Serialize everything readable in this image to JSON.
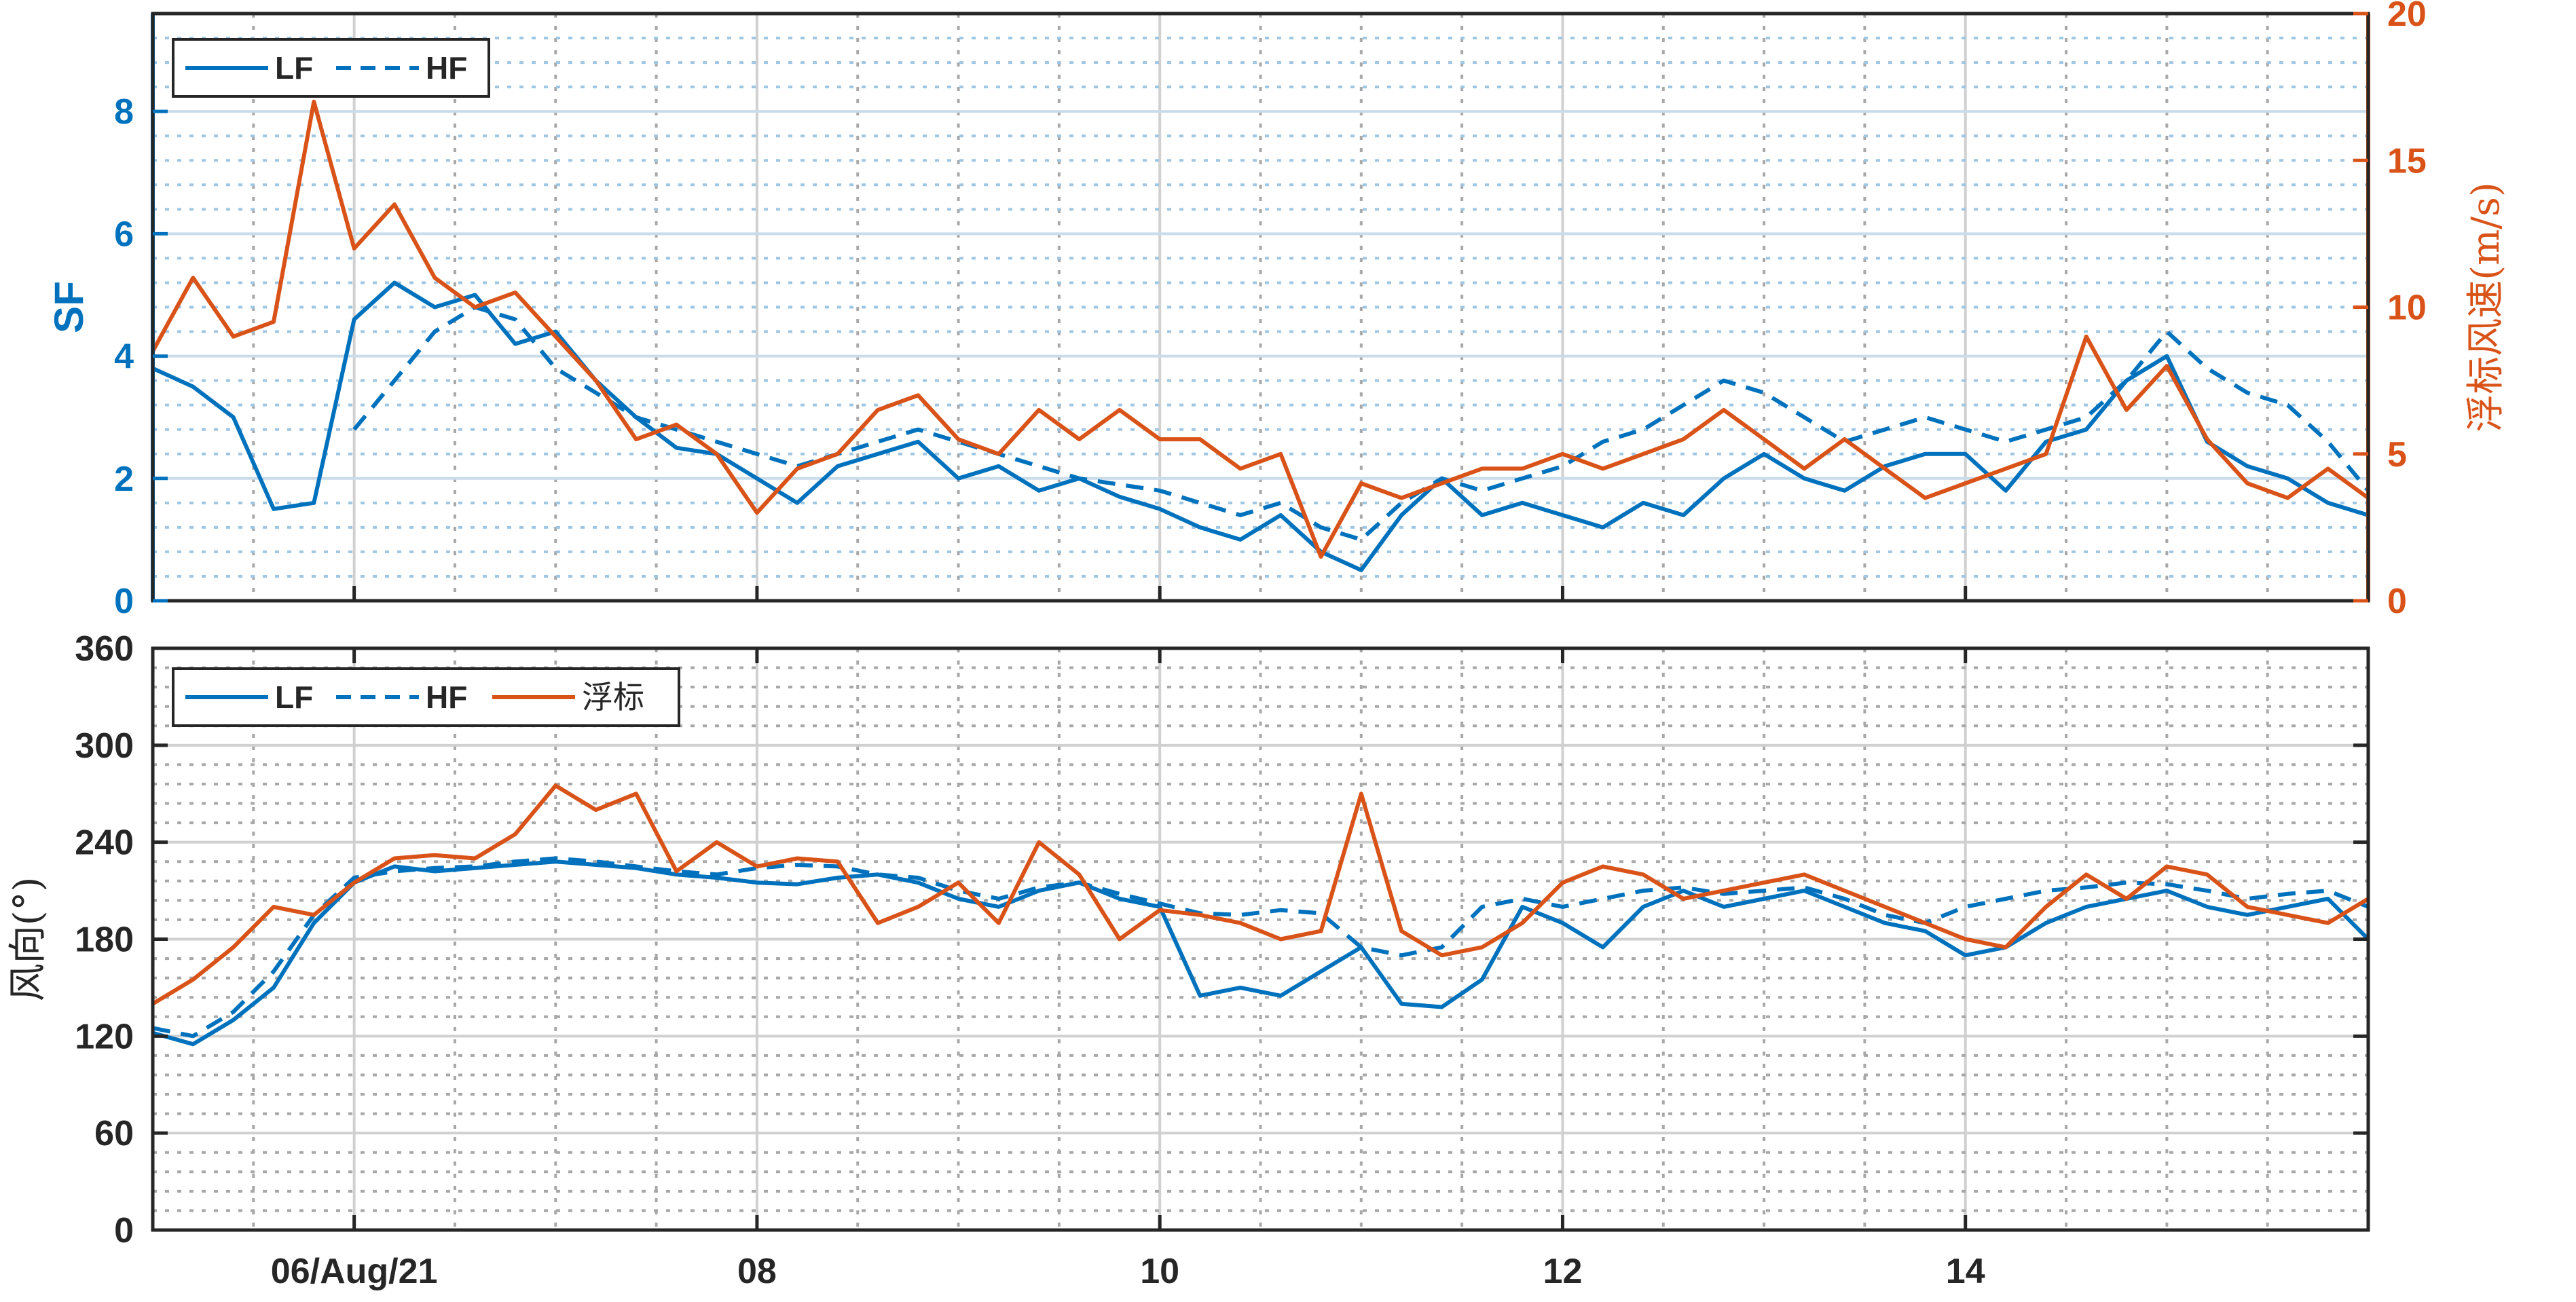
{
  "chart_data": [
    {
      "type": "line",
      "panel": "top",
      "xlabel": "",
      "ylabel": "SF",
      "ylabel_right": "浮标风速(m/s)",
      "ylim": [
        0,
        9.6
      ],
      "ylim_right": [
        0,
        20
      ],
      "yticks": [
        "0",
        "2",
        "4",
        "6",
        "8"
      ],
      "yticks_right": [
        "0",
        "5",
        "10",
        "15",
        "20"
      ],
      "grid": true,
      "legend_placement": "top-left",
      "legend": [
        "LF",
        "HF"
      ],
      "series": [
        {
          "name": "LF",
          "axis": "left",
          "style": "solid",
          "color": "#0072BD",
          "x": [
            5.0,
            5.2,
            5.4,
            5.6,
            5.8,
            6.0,
            6.2,
            6.4,
            6.6,
            6.8,
            7.0,
            7.2,
            7.4,
            7.6,
            7.8,
            8.0,
            8.2,
            8.4,
            8.6,
            8.8,
            9.0,
            9.2,
            9.4,
            9.6,
            9.8,
            10.0,
            10.2,
            10.4,
            10.6,
            10.8,
            11.0,
            11.2,
            11.4,
            11.6,
            11.8,
            12.0,
            12.2,
            12.4,
            12.6,
            12.8,
            13.0,
            13.2,
            13.4,
            13.6,
            13.8,
            14.0,
            14.2,
            14.4,
            14.6,
            14.8,
            15.0,
            15.2,
            15.4,
            15.6,
            15.8,
            16.0
          ],
          "y": [
            3.8,
            3.5,
            3.0,
            1.5,
            1.6,
            4.6,
            5.2,
            4.8,
            5.0,
            4.2,
            4.4,
            3.6,
            3.0,
            2.5,
            2.4,
            2.0,
            1.6,
            2.2,
            2.4,
            2.6,
            2.0,
            2.2,
            1.8,
            2.0,
            1.7,
            1.5,
            1.2,
            1.0,
            1.4,
            0.8,
            0.5,
            1.4,
            2.0,
            1.4,
            1.6,
            1.4,
            1.2,
            1.6,
            1.4,
            2.0,
            2.4,
            2.0,
            1.8,
            2.2,
            2.4,
            2.4,
            1.8,
            2.6,
            2.8,
            3.6,
            4.0,
            2.6,
            2.2,
            2.0,
            1.6,
            1.4
          ]
        },
        {
          "name": "HF",
          "axis": "left",
          "style": "dashed",
          "color": "#0072BD",
          "x": [
            6.0,
            6.2,
            6.4,
            6.6,
            6.8,
            7.0,
            7.2,
            7.4,
            7.6,
            7.8,
            8.0,
            8.2,
            8.4,
            8.6,
            8.8,
            9.0,
            9.2,
            9.4,
            9.6,
            9.8,
            10.0,
            10.2,
            10.4,
            10.6,
            10.8,
            11.0,
            11.2,
            11.4,
            11.6,
            11.8,
            12.0,
            12.2,
            12.4,
            12.6,
            12.8,
            13.0,
            13.2,
            13.4,
            13.6,
            13.8,
            14.0,
            14.2,
            14.4,
            14.6,
            14.8,
            15.0,
            15.2,
            15.4,
            15.6,
            15.8,
            16.0
          ],
          "y": [
            2.8,
            3.6,
            4.4,
            4.8,
            4.6,
            3.8,
            3.4,
            3.0,
            2.8,
            2.6,
            2.4,
            2.2,
            2.4,
            2.6,
            2.8,
            2.6,
            2.4,
            2.2,
            2.0,
            1.9,
            1.8,
            1.6,
            1.4,
            1.6,
            1.2,
            1.0,
            1.6,
            2.0,
            1.8,
            2.0,
            2.2,
            2.6,
            2.8,
            3.2,
            3.6,
            3.4,
            3.0,
            2.6,
            2.8,
            3.0,
            2.8,
            2.6,
            2.8,
            3.0,
            3.6,
            4.4,
            3.8,
            3.4,
            3.2,
            2.6,
            1.8
          ]
        },
        {
          "name": "",
          "axis": "right",
          "style": "solid",
          "color": "#D95319",
          "x": [
            5.0,
            5.2,
            5.4,
            5.6,
            5.8,
            6.0,
            6.2,
            6.4,
            6.6,
            6.8,
            7.0,
            7.2,
            7.4,
            7.6,
            7.8,
            8.0,
            8.2,
            8.4,
            8.6,
            8.8,
            9.0,
            9.2,
            9.4,
            9.6,
            9.8,
            10.0,
            10.2,
            10.4,
            10.6,
            10.8,
            11.0,
            11.2,
            11.4,
            11.6,
            11.8,
            12.0,
            12.2,
            12.4,
            12.6,
            12.8,
            13.0,
            13.2,
            13.4,
            13.6,
            13.8,
            14.0,
            14.2,
            14.4,
            14.6,
            14.8,
            15.0,
            15.2,
            15.4,
            15.6,
            15.8,
            16.0
          ],
          "y": [
            8.5,
            11.0,
            9.0,
            9.5,
            17.0,
            12.0,
            13.5,
            11.0,
            10.0,
            10.5,
            9.0,
            7.5,
            5.5,
            6.0,
            5.0,
            3.0,
            4.5,
            5.0,
            6.5,
            7.0,
            5.5,
            5.0,
            6.5,
            5.5,
            6.5,
            5.5,
            5.5,
            4.5,
            5.0,
            1.5,
            4.0,
            3.5,
            4.0,
            4.5,
            4.5,
            5.0,
            4.5,
            5.0,
            5.5,
            6.5,
            5.5,
            4.5,
            5.5,
            4.5,
            3.5,
            4.0,
            4.5,
            5.0,
            9.0,
            6.5,
            8.0,
            5.5,
            4.0,
            3.5,
            4.5,
            3.5
          ]
        }
      ]
    },
    {
      "type": "line",
      "panel": "bottom",
      "xlabel": "",
      "ylabel": "风向(°)",
      "ylim": [
        0,
        360
      ],
      "yticks": [
        "0",
        "60",
        "120",
        "180",
        "240",
        "300",
        "360"
      ],
      "grid": true,
      "legend_placement": "top-left",
      "legend": [
        "LF",
        "HF",
        "浮标"
      ],
      "series": [
        {
          "name": "LF",
          "style": "solid",
          "color": "#0072BD",
          "x": [
            5.0,
            5.2,
            5.4,
            5.6,
            5.8,
            6.0,
            6.2,
            6.4,
            6.6,
            6.8,
            7.0,
            7.2,
            7.4,
            7.6,
            7.8,
            8.0,
            8.2,
            8.4,
            8.6,
            8.8,
            9.0,
            9.2,
            9.4,
            9.6,
            9.8,
            10.0,
            10.2,
            10.4,
            10.6,
            10.8,
            11.0,
            11.2,
            11.4,
            11.6,
            11.8,
            12.0,
            12.2,
            12.4,
            12.6,
            12.8,
            13.0,
            13.2,
            13.4,
            13.6,
            13.8,
            14.0,
            14.2,
            14.4,
            14.6,
            14.8,
            15.0,
            15.2,
            15.4,
            15.6,
            15.8,
            16.0
          ],
          "y": [
            122,
            115,
            130,
            150,
            190,
            215,
            225,
            222,
            224,
            226,
            228,
            226,
            224,
            220,
            218,
            215,
            214,
            218,
            220,
            215,
            205,
            200,
            210,
            215,
            205,
            200,
            145,
            150,
            145,
            160,
            175,
            140,
            138,
            155,
            200,
            190,
            175,
            200,
            210,
            200,
            205,
            210,
            200,
            190,
            185,
            170,
            175,
            190,
            200,
            205,
            210,
            200,
            195,
            200,
            205,
            180
          ]
        },
        {
          "name": "HF",
          "style": "dashed",
          "color": "#0072BD",
          "x": [
            5.0,
            5.2,
            5.4,
            5.6,
            5.8,
            6.0,
            6.2,
            6.4,
            6.6,
            6.8,
            7.0,
            7.2,
            7.4,
            7.6,
            7.8,
            8.0,
            8.2,
            8.4,
            8.6,
            8.8,
            9.0,
            9.2,
            9.4,
            9.6,
            9.8,
            10.0,
            10.2,
            10.4,
            10.6,
            10.8,
            11.0,
            11.2,
            11.4,
            11.6,
            11.8,
            12.0,
            12.2,
            12.4,
            12.6,
            12.8,
            13.0,
            13.2,
            13.4,
            13.6,
            13.8,
            14.0,
            14.2,
            14.4,
            14.6,
            14.8,
            15.0,
            15.2,
            15.4,
            15.6,
            15.8,
            16.0
          ],
          "y": [
            125,
            120,
            135,
            160,
            195,
            218,
            222,
            224,
            225,
            228,
            230,
            228,
            225,
            222,
            220,
            224,
            226,
            225,
            220,
            218,
            210,
            205,
            212,
            215,
            208,
            202,
            196,
            195,
            198,
            196,
            175,
            170,
            175,
            200,
            205,
            200,
            205,
            210,
            212,
            208,
            210,
            212,
            205,
            195,
            190,
            200,
            205,
            210,
            212,
            215,
            214,
            210,
            205,
            208,
            210,
            200
          ]
        },
        {
          "name": "浮标",
          "style": "solid",
          "color": "#D95319",
          "x": [
            5.0,
            5.2,
            5.4,
            5.6,
            5.8,
            6.0,
            6.2,
            6.4,
            6.6,
            6.8,
            7.0,
            7.2,
            7.4,
            7.6,
            7.8,
            8.0,
            8.2,
            8.4,
            8.6,
            8.8,
            9.0,
            9.2,
            9.4,
            9.6,
            9.8,
            10.0,
            10.2,
            10.4,
            10.6,
            10.8,
            11.0,
            11.2,
            11.4,
            11.6,
            11.8,
            12.0,
            12.2,
            12.4,
            12.6,
            12.8,
            13.0,
            13.2,
            13.4,
            13.6,
            13.8,
            14.0,
            14.2,
            14.4,
            14.6,
            14.8,
            15.0,
            15.2,
            15.4,
            15.6,
            15.8,
            16.0
          ],
          "y": [
            140,
            155,
            175,
            200,
            195,
            215,
            230,
            232,
            230,
            245,
            275,
            260,
            270,
            222,
            240,
            225,
            230,
            228,
            190,
            200,
            215,
            190,
            240,
            220,
            180,
            198,
            195,
            190,
            180,
            185,
            270,
            185,
            170,
            175,
            190,
            215,
            225,
            220,
            205,
            210,
            215,
            220,
            210,
            200,
            190,
            180,
            175,
            200,
            220,
            205,
            225,
            220,
            200,
            195,
            190,
            205
          ]
        }
      ]
    }
  ],
  "x_axis": {
    "xlim": [
      5.0,
      16.0
    ],
    "ticks": [
      {
        "x": 6,
        "label": "06/Aug/21"
      },
      {
        "x": 8,
        "label": "08"
      },
      {
        "x": 10,
        "label": "10"
      },
      {
        "x": 12,
        "label": "12"
      },
      {
        "x": 14,
        "label": "14"
      }
    ],
    "minor_step": 0.5
  },
  "colors": {
    "blue": "#0072BD",
    "orange": "#D95319",
    "axis": "#262626"
  }
}
